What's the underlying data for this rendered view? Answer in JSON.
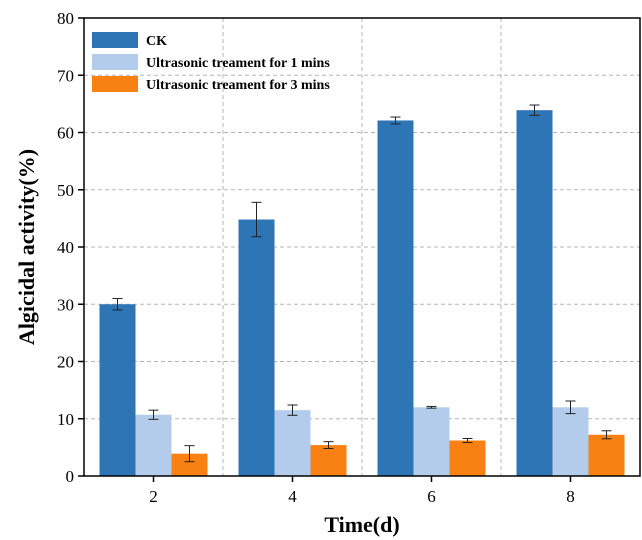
{
  "chart_data": {
    "type": "bar",
    "title": "",
    "xlabel": "Time(d)",
    "ylabel": "Algicidal activity(%)",
    "categories": [
      "2",
      "4",
      "6",
      "8"
    ],
    "ylim": [
      0,
      80
    ],
    "yticks": [
      0,
      10,
      20,
      30,
      40,
      50,
      60,
      70,
      80
    ],
    "grid": true,
    "legend_position": "top-left",
    "series": [
      {
        "name": "CK",
        "color": "#2E75B6",
        "values": [
          30.0,
          44.8,
          62.1,
          63.9
        ],
        "errors": [
          1.0,
          3.0,
          0.6,
          0.9
        ]
      },
      {
        "name": "Ultrasonic treament for 1 mins",
        "color": "#B4CCEC",
        "values": [
          10.7,
          11.5,
          12.0,
          12.0
        ],
        "errors": [
          0.8,
          0.9,
          0.15,
          1.1
        ]
      },
      {
        "name": "Ultrasonic treament for 3 mins",
        "color": "#F98012",
        "values": [
          3.9,
          5.4,
          6.2,
          7.2
        ],
        "errors": [
          1.4,
          0.6,
          0.35,
          0.7
        ]
      }
    ]
  }
}
